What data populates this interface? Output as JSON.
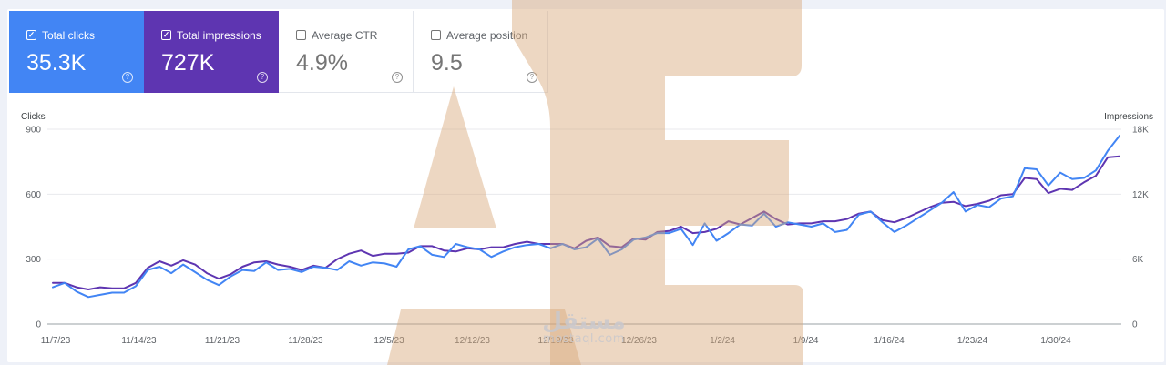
{
  "metric_cards": [
    {
      "label": "Total clicks",
      "value": "35.3K",
      "checked": true,
      "color": "#4285f4"
    },
    {
      "label": "Total impressions",
      "value": "727K",
      "checked": true,
      "color": "#5e35b1"
    },
    {
      "label": "Average CTR",
      "value": "4.9%",
      "checked": false
    },
    {
      "label": "Average position",
      "value": "9.5",
      "checked": false
    }
  ],
  "help_icon": "help-circle-icon",
  "watermark": {
    "arabic": "مستقل",
    "latin": "mostaql.com",
    "letters": "AE"
  },
  "chart_data": {
    "type": "line",
    "title": "",
    "left_axis": {
      "label": "Clicks",
      "ticks": [
        "0",
        "300",
        "600",
        "900"
      ],
      "range": [
        0,
        900
      ]
    },
    "right_axis": {
      "label": "Impressions",
      "ticks": [
        "0",
        "6K",
        "12K",
        "18K"
      ],
      "range": [
        0,
        18000
      ]
    },
    "x_tick_labels": [
      "11/7/23",
      "11/14/23",
      "11/21/23",
      "11/28/23",
      "12/5/23",
      "12/12/23",
      "12/19/23",
      "12/26/23",
      "1/2/24",
      "1/9/24",
      "1/16/24",
      "1/23/24",
      "1/30/24"
    ],
    "x_start": "11/7/23",
    "grid": true,
    "series": [
      {
        "name": "Clicks",
        "axis": "left",
        "color": "#4285f4",
        "values": [
          170,
          190,
          150,
          125,
          135,
          145,
          145,
          175,
          250,
          265,
          235,
          275,
          240,
          205,
          180,
          220,
          250,
          245,
          285,
          250,
          255,
          240,
          265,
          260,
          250,
          290,
          270,
          285,
          280,
          265,
          345,
          360,
          320,
          310,
          370,
          355,
          345,
          310,
          335,
          355,
          365,
          370,
          350,
          370,
          345,
          355,
          395,
          320,
          345,
          390,
          400,
          420,
          420,
          440,
          365,
          465,
          385,
          420,
          460,
          455,
          510,
          450,
          470,
          460,
          450,
          465,
          425,
          435,
          505,
          520,
          470,
          425,
          455,
          490,
          525,
          560,
          610,
          520,
          550,
          540,
          580,
          590,
          720,
          715,
          640,
          700,
          670,
          675,
          710,
          800,
          870
        ]
      },
      {
        "name": "Impressions",
        "axis": "right",
        "color": "#5e35b1",
        "values": [
          3800,
          3800,
          3400,
          3200,
          3400,
          3300,
          3300,
          3800,
          5200,
          5800,
          5400,
          5900,
          5500,
          4700,
          4200,
          4600,
          5300,
          5700,
          5800,
          5500,
          5300,
          5000,
          5400,
          5200,
          6000,
          6500,
          6800,
          6300,
          6500,
          6500,
          6600,
          7200,
          7200,
          6800,
          6700,
          7000,
          6900,
          7100,
          7100,
          7400,
          7600,
          7400,
          7400,
          7400,
          7000,
          7700,
          8000,
          7200,
          7100,
          7900,
          7800,
          8500,
          8600,
          9000,
          8400,
          8500,
          8800,
          9500,
          9200,
          9800,
          10400,
          9700,
          9200,
          9300,
          9300,
          9500,
          9500,
          9700,
          10200,
          10400,
          9600,
          9400,
          9800,
          10300,
          10800,
          11200,
          11300,
          10900,
          11100,
          11400,
          11900,
          12000,
          13500,
          13400,
          12100,
          12500,
          12400,
          13100,
          13700,
          15400,
          15500
        ]
      }
    ]
  }
}
